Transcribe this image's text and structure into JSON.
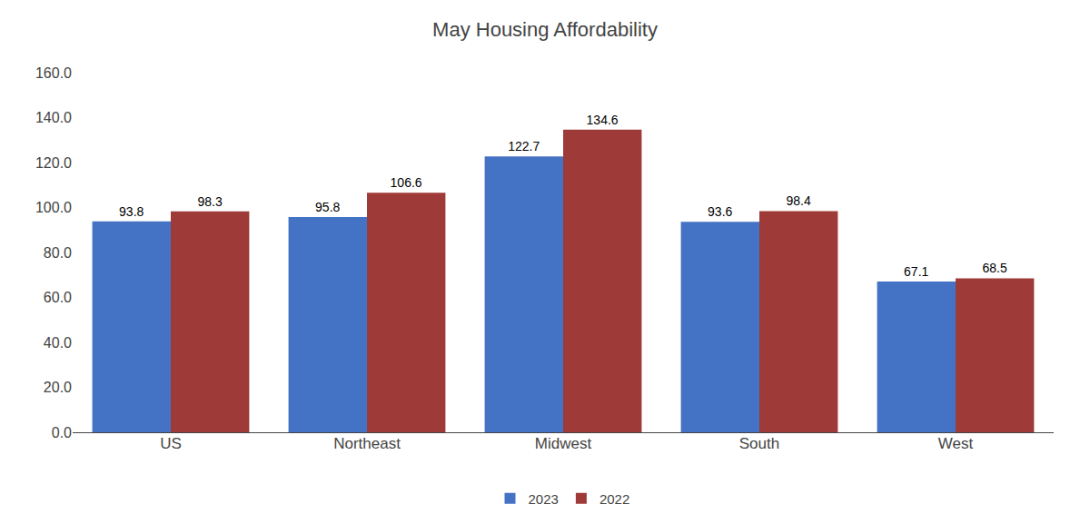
{
  "chart_data": {
    "type": "bar",
    "title": "May Housing Affordability",
    "categories": [
      "US",
      "Northeast",
      "Midwest",
      "South",
      "West"
    ],
    "series": [
      {
        "name": "2023",
        "color": "#4472C4",
        "values": [
          93.8,
          95.8,
          122.7,
          93.6,
          67.1
        ]
      },
      {
        "name": "2022",
        "color": "#9E3A38",
        "values": [
          98.3,
          106.6,
          134.6,
          98.4,
          68.5
        ]
      }
    ],
    "ylim": [
      0,
      160
    ],
    "yticks": [
      {
        "value": 0,
        "label": "0.0"
      },
      {
        "value": 20,
        "label": "20.0"
      },
      {
        "value": 40,
        "label": "40.0"
      },
      {
        "value": 60,
        "label": "60.0"
      },
      {
        "value": 80,
        "label": "80.0"
      },
      {
        "value": 100,
        "label": "100.0"
      },
      {
        "value": 120,
        "label": "120.0"
      },
      {
        "value": 140,
        "label": "140.0"
      },
      {
        "value": 160,
        "label": "160.0"
      }
    ],
    "grid": false,
    "legend": "bottom",
    "data_labels": true
  }
}
